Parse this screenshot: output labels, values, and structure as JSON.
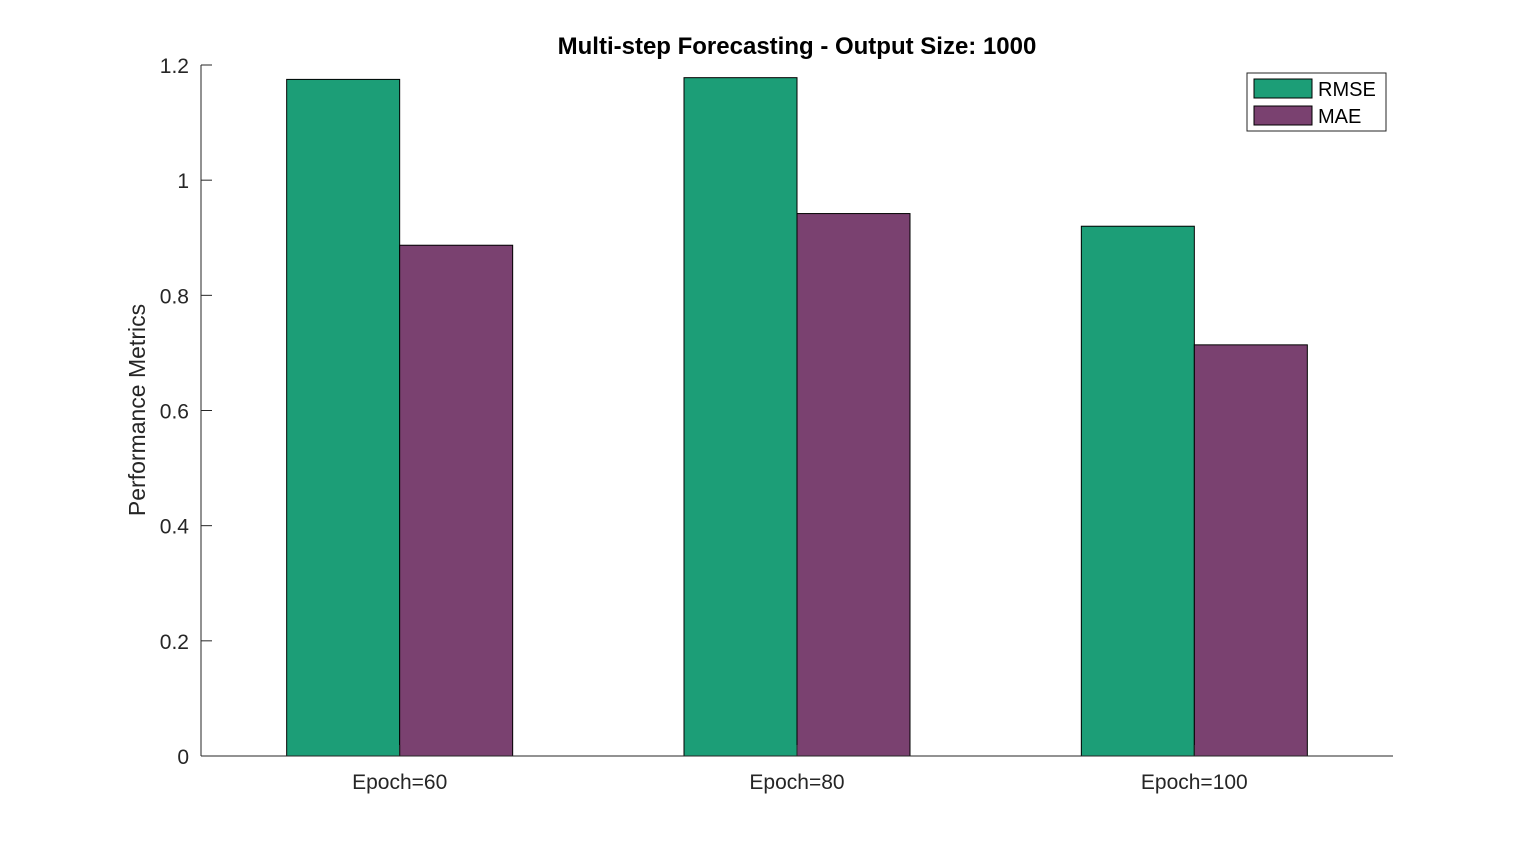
{
  "chart_data": {
    "type": "bar",
    "title": "Multi-step Forecasting - Output Size: 1000",
    "xlabel": "",
    "ylabel": "Performance Metrics",
    "categories": [
      "Epoch=60",
      "Epoch=80",
      "Epoch=100"
    ],
    "series": [
      {
        "name": "RMSE",
        "color": "#1c9e77",
        "values": [
          1.175,
          1.178,
          0.92
        ]
      },
      {
        "name": "MAE",
        "color": "#7a4170",
        "values": [
          0.887,
          0.942,
          0.714
        ]
      }
    ],
    "ylim": [
      0,
      1.2
    ],
    "yticks": [
      0,
      0.2,
      0.4,
      0.6,
      0.8,
      1,
      1.2
    ],
    "ytick_labels": [
      "0",
      "0.2",
      "0.4",
      "0.6",
      "0.8",
      "1",
      "1.2"
    ],
    "grid": false,
    "legend_position": "top-right"
  }
}
